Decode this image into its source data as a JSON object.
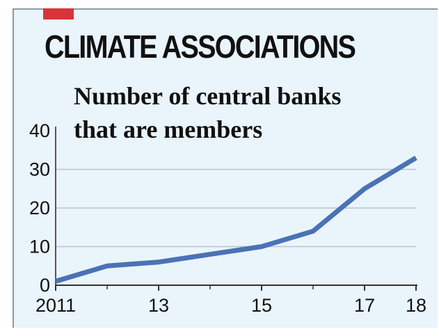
{
  "headline": "CLIMATE ASSOCIATIONS",
  "chart_data": {
    "type": "line",
    "title": "",
    "subtitle_lines": [
      "Number of central banks",
      "that are members"
    ],
    "xlabel": "",
    "ylabel": "",
    "x": [
      2011,
      2012,
      2013,
      2014,
      2015,
      2016,
      2017,
      2018
    ],
    "series": [
      {
        "values": [
          1,
          5,
          6,
          8,
          10,
          14,
          25,
          33
        ],
        "color": "#4a72b5"
      }
    ],
    "xlim": [
      2011,
      2018
    ],
    "ylim": [
      0,
      40
    ],
    "yticks": [
      {
        "value": 0,
        "label": "0"
      },
      {
        "value": 10,
        "label": "10"
      },
      {
        "value": 20,
        "label": "20"
      },
      {
        "value": 30,
        "label": "30"
      },
      {
        "value": 40,
        "label": "40"
      }
    ],
    "xticks": [
      {
        "value": 2011,
        "label": "2011"
      },
      {
        "value": 2013,
        "label": "13"
      },
      {
        "value": 2015,
        "label": "15"
      },
      {
        "value": 2017,
        "label": "17"
      },
      {
        "value": 2018,
        "label": "18"
      }
    ],
    "minor_xticks": [
      2012,
      2014,
      2016
    ],
    "grid": true,
    "legend": "none",
    "colors": {
      "background": "#eaf4fb",
      "grid": "#b9c3ca",
      "accent": "#d7343a"
    }
  }
}
